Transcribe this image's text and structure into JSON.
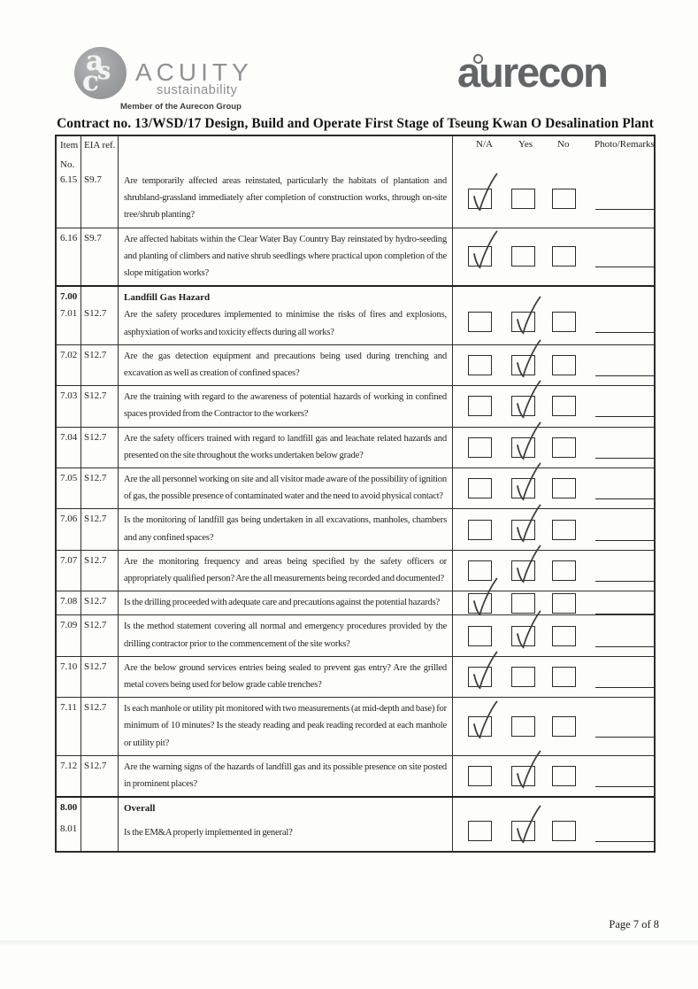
{
  "logos": {
    "acuity": {
      "emblem": "asc",
      "word": "ACUITY",
      "sub": "sustainability",
      "member": "Member of the Aurecon Group"
    },
    "aurecon": {
      "word": "aurecon"
    }
  },
  "title": "Contract no.  13/WSD/17 Design, Build and Operate First Stage of Tseung Kwan O Desalination Plant",
  "table": {
    "headers": {
      "item": [
        "Item",
        "No."
      ],
      "eia": "EIA ref.",
      "na": "N/A",
      "yes": "Yes",
      "no": "No",
      "photo": "Photo/Remarks"
    },
    "rows": [
      {
        "item": "6.15",
        "eia": "S9.7",
        "question": "Are temporarily affected areas reinstated, particularly the habitats of plantation and shrubland-grassland immediately after completion of construction works, through on-site tree/shrub planting?",
        "checked": "na"
      },
      {
        "item": "6.16",
        "eia": "S9.7",
        "question": "Are affected habitats within the Clear Water Bay Country Bay reinstated by hydro-seeding and planting of climbers and native shrub seedlings where practical upon completion of the slope mitigation works?",
        "checked": "na"
      },
      {
        "section_item": "7.00",
        "section_title": "Landfill Gas Hazard",
        "item": "7.01",
        "eia": "S12.7",
        "question": "Are the safety procedures implemented to minimise the risks of fires and explosions, asphyxiation of works and toxicity effects during all works?",
        "checked": "yes",
        "thick_top": true
      },
      {
        "item": "7.02",
        "eia": "S12.7",
        "question": "Are the gas detection equipment and precautions being used during trenching and excavation as well as creation of confined spaces?",
        "checked": "yes"
      },
      {
        "item": "7.03",
        "eia": "S12.7",
        "question": "Are the training with regard to the awareness of potential hazards of working in confined spaces provided from the Contractor to the workers?",
        "checked": "yes"
      },
      {
        "item": "7.04",
        "eia": "S12.7",
        "question": "Are the safety officers trained with regard to landfill gas and leachate related hazards and presented on the site throughout the works undertaken below grade?",
        "checked": "yes"
      },
      {
        "item": "7.05",
        "eia": "S12.7",
        "question": "Are the all personnel working on site and all visitor made aware of the possibility of ignition of gas, the possible presence of contaminated water and the need to avoid physical contact?",
        "checked": "yes"
      },
      {
        "item": "7.06",
        "eia": "S12.7",
        "question": "Is the monitoring of landfill gas being undertaken in all excavations, manholes, chambers and any confined spaces?",
        "checked": "yes"
      },
      {
        "item": "7.07",
        "eia": "S12.7",
        "question": "Are the monitoring frequency and areas being specified by the safety officers or appropriately qualified person? Are the all measurements being recorded and documented?",
        "checked": "yes"
      },
      {
        "item": "7.08",
        "eia": "S12.7",
        "question": "Is the drilling proceeded with adequate care and precautions against the potential hazards?",
        "checked": "na"
      },
      {
        "item": "7.09",
        "eia": "S12.7",
        "question": "Is the method statement covering all normal and emergency procedures provided by the drilling contractor prior to the commencement of the site works?",
        "checked": "yes"
      },
      {
        "item": "7.10",
        "eia": "S12.7",
        "question": "Are the below ground services entries being sealed to prevent gas entry? Are the grilled metal covers being used for below grade cable trenches?",
        "checked": "na"
      },
      {
        "item": "7.11",
        "eia": "S12.7",
        "question": "Is each manhole or utility pit monitored with two measurements (at mid-depth and base) for minimum of 10 minutes? Is the steady reading and peak reading recorded at each manhole or utility pit?",
        "checked": "na"
      },
      {
        "item": "7.12",
        "eia": "S12.7",
        "question": "Are the warning signs of the hazards of landfill gas and its possible presence on site posted in prominent places?",
        "checked": "yes"
      },
      {
        "section_item": "8.00",
        "section_title": "Overall",
        "item": "8.01",
        "eia": "",
        "question": "Is the EM&A properly implemented in general?",
        "checked": "yes",
        "thick_top": true
      }
    ]
  },
  "footer": {
    "page": "Page 7 of 8"
  }
}
